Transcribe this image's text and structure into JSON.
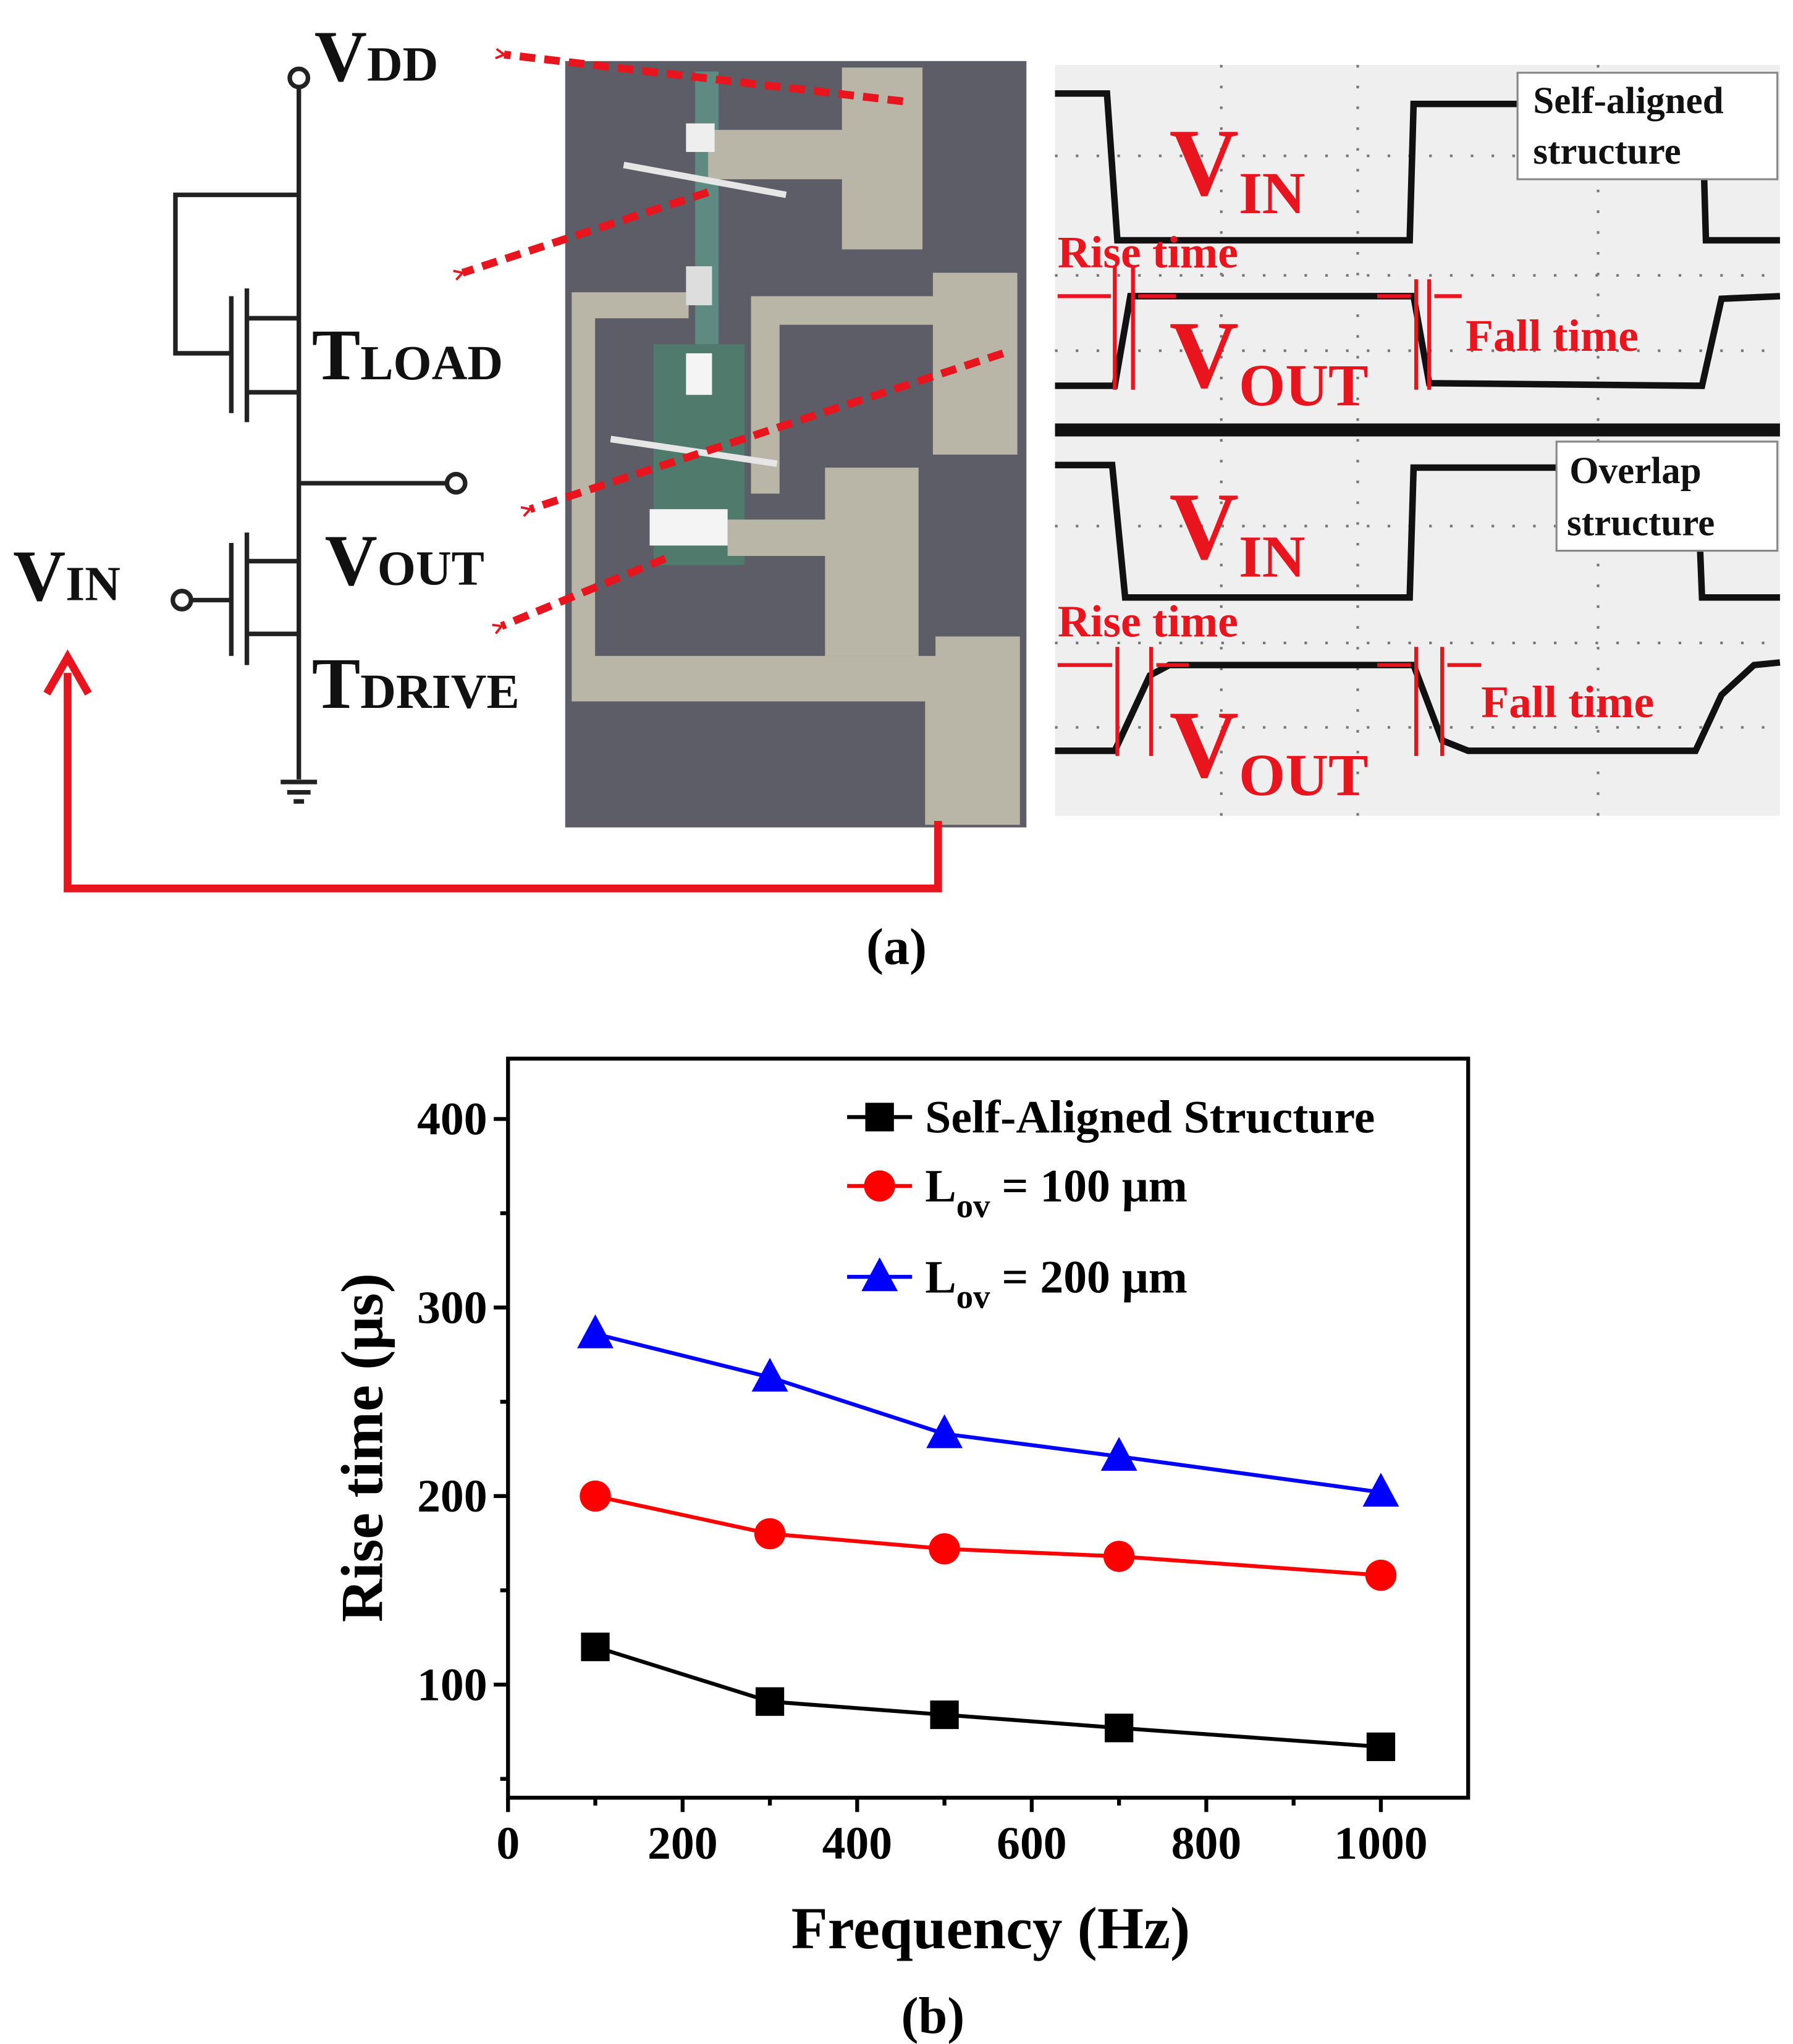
{
  "figure_a": {
    "circuit": {
      "vdd": {
        "main": "V",
        "sub": "DD"
      },
      "t_load": {
        "main": "T",
        "sub": "LOAD"
      },
      "v_out": {
        "main": "V",
        "sub": "OUT"
      },
      "v_in": {
        "main": "V",
        "sub": "IN"
      },
      "t_drive": {
        "main": "T",
        "sub": "DRIVE"
      }
    },
    "scope": [
      {
        "box": [
          "Self-aligned",
          "structure"
        ],
        "v_in": {
          "main": "V",
          "sub": "IN"
        },
        "v_out": {
          "main": "V",
          "sub": "OUT"
        },
        "rise": "Rise time",
        "fall": "Fall time"
      },
      {
        "box": [
          "Overlap",
          "structure"
        ],
        "v_in": {
          "main": "V",
          "sub": "IN"
        },
        "v_out": {
          "main": "V",
          "sub": "OUT"
        },
        "rise": "Rise time",
        "fall": "Fall time"
      }
    ],
    "caption": "(a)"
  },
  "chart_data": {
    "type": "line",
    "x_label": "Frequency (Hz)",
    "y_label": "Rise time (μs)",
    "x": [
      100,
      300,
      500,
      700,
      1000
    ],
    "series": [
      {
        "name": [
          {
            "text": "Self-Aligned Structure"
          }
        ],
        "color": "#000000",
        "marker": "square",
        "values": [
          120,
          91,
          84,
          77,
          67
        ]
      },
      {
        "name": [
          {
            "text": "L"
          },
          {
            "text": "ov",
            "sub": true
          },
          {
            "text": " = 100 μm"
          }
        ],
        "color": "#ff0000",
        "marker": "circle",
        "values": [
          200,
          180,
          172,
          168,
          158
        ]
      },
      {
        "name": [
          {
            "text": "L"
          },
          {
            "text": "ov",
            "sub": true
          },
          {
            "text": " = 200 μm"
          }
        ],
        "color": "#0000ff",
        "marker": "triangle",
        "values": [
          286,
          263,
          233,
          221,
          202
        ]
      }
    ],
    "xlim": [
      0,
      1100
    ],
    "xticks": [
      0,
      200,
      400,
      600,
      800,
      1000
    ],
    "xminorticks": [
      100,
      300,
      500,
      700,
      900
    ],
    "ylim": [
      40,
      432
    ],
    "yticks": [
      100,
      200,
      300,
      400
    ],
    "yminorticks": [
      50,
      150,
      250,
      350
    ],
    "legend": "top-right"
  },
  "figure_b_caption": "(b)"
}
